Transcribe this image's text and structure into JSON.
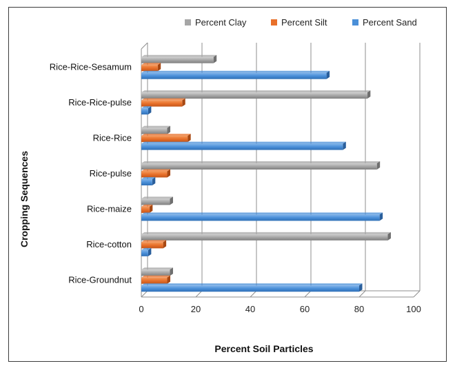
{
  "chart_data": {
    "type": "bar",
    "orientation": "horizontal",
    "title": "",
    "xlabel": "Percent Soil Particles",
    "ylabel": "Cropping Sequences",
    "xlim": [
      0,
      100
    ],
    "xticks": [
      "0",
      "20",
      "40",
      "60",
      "80",
      "100"
    ],
    "grid": true,
    "legend_position": "top-right",
    "categories": [
      "Rice-Groundnut",
      "Rice-cotton",
      "Rice-maize",
      "Rice-pulse",
      "Rice-Rice",
      "Rice-Rice-pulse",
      "Rice-Rice-Sesamum"
    ],
    "series": [
      {
        "name": "Percent Sand",
        "color": "#4a8fd8",
        "values": [
          80,
          2.5,
          87.5,
          4,
          74,
          2.5,
          68
        ]
      },
      {
        "name": "Percent Silt",
        "color": "#e8702a",
        "values": [
          9.5,
          8,
          3,
          9.5,
          17,
          15,
          6
        ]
      },
      {
        "name": "Percent Clay",
        "color": "#a6a6a6",
        "values": [
          10.5,
          90.5,
          10.5,
          86.5,
          9.5,
          83,
          26.5
        ]
      }
    ],
    "legend_order": [
      "Percent Clay",
      "Percent Silt",
      "Percent Sand"
    ]
  }
}
